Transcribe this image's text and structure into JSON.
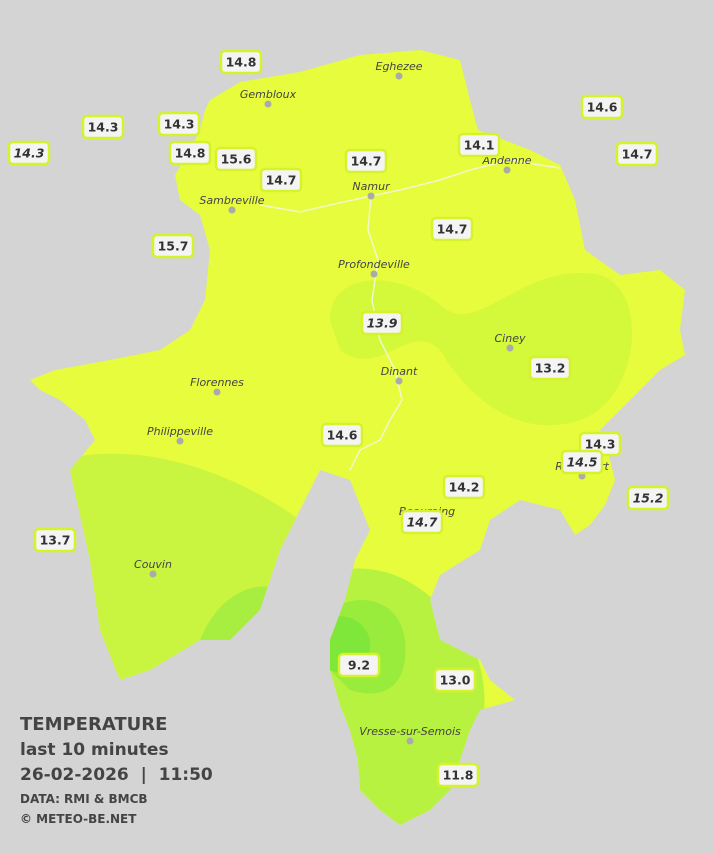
{
  "legend": {
    "title": "TEMPERATURE",
    "subtitle": "last 10 minutes",
    "datetime": "26-02-2026  |  11:50",
    "source": "DATA: RMI & BMCB",
    "copyright": "© METEO-BE.NET"
  },
  "places": [
    "Eghezee",
    "Gembloux",
    "Andenne",
    "Namur",
    "Sambreville",
    "Profondeville",
    "Ciney",
    "Dinant",
    "Florennes",
    "Philippeville",
    "Rochefort",
    "Beauraing",
    "Couvin",
    "Vresse-sur-Semois"
  ],
  "stations": [
    {
      "value": "14.8",
      "italic": false
    },
    {
      "value": "14.3",
      "italic": false
    },
    {
      "value": "14.3",
      "italic": true
    },
    {
      "value": "14.3",
      "italic": false
    },
    {
      "value": "14.8",
      "italic": false
    },
    {
      "value": "15.6",
      "italic": false
    },
    {
      "value": "14.7",
      "italic": false
    },
    {
      "value": "14.7",
      "italic": false
    },
    {
      "value": "14.1",
      "italic": false
    },
    {
      "value": "14.6",
      "italic": false
    },
    {
      "value": "14.7",
      "italic": false
    },
    {
      "value": "15.7",
      "italic": false
    },
    {
      "value": "14.7",
      "italic": false
    },
    {
      "value": "13.9",
      "italic": true
    },
    {
      "value": "13.2",
      "italic": false
    },
    {
      "value": "14.6",
      "italic": false
    },
    {
      "value": "14.3",
      "italic": false
    },
    {
      "value": "14.5",
      "italic": true
    },
    {
      "value": "15.2",
      "italic": true
    },
    {
      "value": "14.2",
      "italic": false
    },
    {
      "value": "14.7",
      "italic": true
    },
    {
      "value": "13.7",
      "italic": false
    },
    {
      "value": "9.2",
      "italic": false
    },
    {
      "value": "13.0",
      "italic": false
    },
    {
      "value": "11.8",
      "italic": false
    }
  ]
}
